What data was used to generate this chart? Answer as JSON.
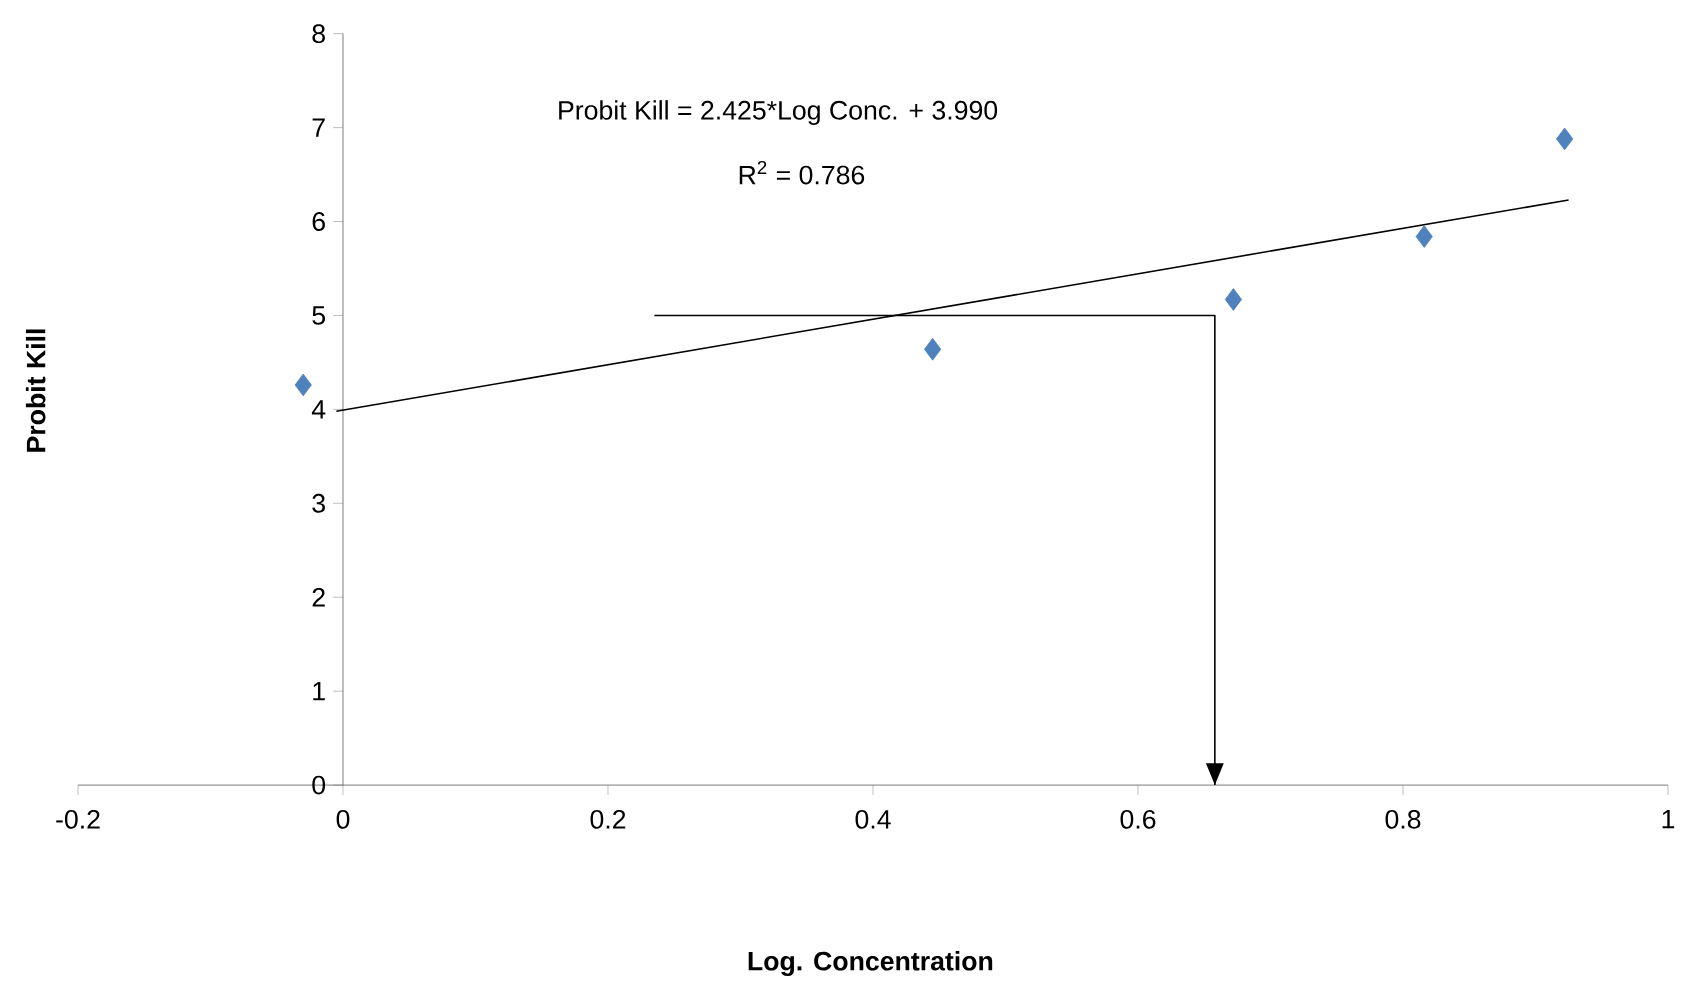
{
  "chart_data": {
    "type": "scatter",
    "xlabel": "Log. Concentration",
    "ylabel": "Probit Kill",
    "xlim": [
      -0.2,
      1
    ],
    "xticks": [
      -0.2,
      0,
      0.2,
      0.4,
      0.6,
      0.8,
      1
    ],
    "ylim": [
      0,
      8
    ],
    "yticks": [
      0,
      1,
      2,
      3,
      4,
      5,
      6,
      7,
      8
    ],
    "marker": "diamond",
    "grid": false,
    "annotations": [
      "Probit Kill = 2.425*Log Conc. + 3.990",
      "R$^{2}$ = 0.786"
    ],
    "series": [
      {
        "color": "#4f81bd",
        "x": [
          -0.03,
          0.445,
          0.672,
          0.816,
          0.922
        ],
        "values": [
          4.26,
          4.64,
          5.17,
          5.84,
          6.88
        ]
      },
      {
        "type": "line",
        "marker": "none",
        "color": "#000000",
        "x": [
          -0.005,
          0.925
        ],
        "values": [
          3.98,
          6.23
        ]
      },
      {
        "type": "line",
        "marker": "none",
        "color": "#000000",
        "x": [
          0.235,
          0.658,
          0.658
        ],
        "values": [
          5,
          5,
          0
        ]
      }
    ]
  }
}
